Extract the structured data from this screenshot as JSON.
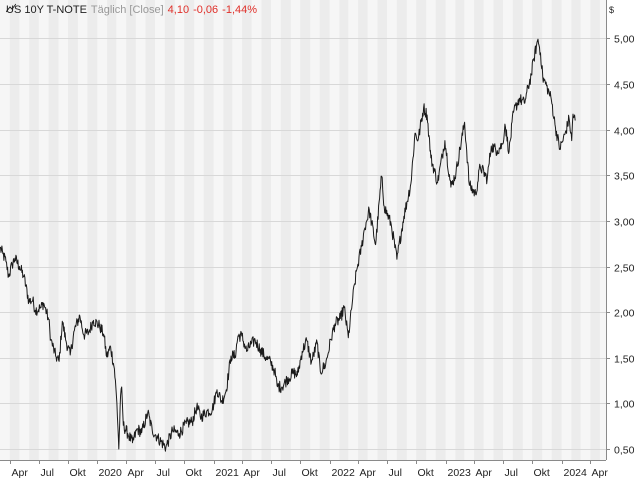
{
  "legend": {
    "name": "US 10Y T-NOTE",
    "period": "Täglich [Close]",
    "last": "4,10",
    "change": "-0,06",
    "change_pct": "-1,44%"
  },
  "colors": {
    "line": "#1a1a1a",
    "negative": "#e0302a",
    "band_light": "#f6f6f6",
    "band_dark": "#ececec",
    "grid": "#d8d8d8",
    "axis": "#8a8a8a"
  },
  "chart_data": {
    "type": "line",
    "currency_label": "$",
    "x_range": [
      "2019-03-01",
      "2024-05-20"
    ],
    "y_range": [
      0.38,
      5.42
    ],
    "y_ticks": [
      {
        "value": 0.5,
        "label": "0,50"
      },
      {
        "value": 1.0,
        "label": "1,00"
      },
      {
        "value": 1.5,
        "label": "1,50"
      },
      {
        "value": 2.0,
        "label": "2,00"
      },
      {
        "value": 2.5,
        "label": "2,50"
      },
      {
        "value": 3.0,
        "label": "3,00"
      },
      {
        "value": 3.5,
        "label": "3,50"
      },
      {
        "value": 4.0,
        "label": "4,00"
      },
      {
        "value": 4.5,
        "label": "4,50"
      },
      {
        "value": 5.0,
        "label": "5,00"
      }
    ],
    "x_ticks": [
      {
        "date": "2019-04-01",
        "label": "Apr"
      },
      {
        "date": "2019-07-01",
        "label": "Jul"
      },
      {
        "date": "2019-10-01",
        "label": "Okt"
      },
      {
        "date": "2020-01-01",
        "label": "2020"
      },
      {
        "date": "2020-04-01",
        "label": "Apr"
      },
      {
        "date": "2020-07-01",
        "label": "Jul"
      },
      {
        "date": "2020-10-01",
        "label": "Okt"
      },
      {
        "date": "2021-01-01",
        "label": "2021"
      },
      {
        "date": "2021-04-01",
        "label": "Apr"
      },
      {
        "date": "2021-07-01",
        "label": "Jul"
      },
      {
        "date": "2021-10-01",
        "label": "Okt"
      },
      {
        "date": "2022-01-01",
        "label": "2022"
      },
      {
        "date": "2022-04-01",
        "label": "Apr"
      },
      {
        "date": "2022-07-01",
        "label": "Jul"
      },
      {
        "date": "2022-10-01",
        "label": "Okt"
      },
      {
        "date": "2023-01-01",
        "label": "2023"
      },
      {
        "date": "2023-04-01",
        "label": "Apr"
      },
      {
        "date": "2023-07-01",
        "label": "Jul"
      },
      {
        "date": "2023-10-01",
        "label": "Okt"
      },
      {
        "date": "2024-01-01",
        "label": "2024"
      },
      {
        "date": "2024-04-01",
        "label": "Apr"
      }
    ],
    "series": [
      {
        "name": "US 10Y T-NOTE",
        "points": [
          [
            "2019-03-01",
            2.7
          ],
          [
            "2019-03-10",
            2.64
          ],
          [
            "2019-03-20",
            2.55
          ],
          [
            "2019-03-28",
            2.39
          ],
          [
            "2019-04-08",
            2.52
          ],
          [
            "2019-04-17",
            2.59
          ],
          [
            "2019-05-01",
            2.5
          ],
          [
            "2019-05-15",
            2.39
          ],
          [
            "2019-05-31",
            2.12
          ],
          [
            "2019-06-12",
            2.13
          ],
          [
            "2019-06-20",
            2.02
          ],
          [
            "2019-07-08",
            2.05
          ],
          [
            "2019-07-16",
            2.1
          ],
          [
            "2019-08-01",
            1.92
          ],
          [
            "2019-08-08",
            1.7
          ],
          [
            "2019-08-23",
            1.52
          ],
          [
            "2019-09-03",
            1.46
          ],
          [
            "2019-09-13",
            1.9
          ],
          [
            "2019-09-25",
            1.68
          ],
          [
            "2019-10-08",
            1.53
          ],
          [
            "2019-10-21",
            1.8
          ],
          [
            "2019-11-07",
            1.96
          ],
          [
            "2019-11-20",
            1.75
          ],
          [
            "2019-12-05",
            1.78
          ],
          [
            "2019-12-20",
            1.91
          ],
          [
            "2020-01-08",
            1.85
          ],
          [
            "2020-01-21",
            1.76
          ],
          [
            "2020-01-31",
            1.51
          ],
          [
            "2020-02-12",
            1.62
          ],
          [
            "2020-02-24",
            1.38
          ],
          [
            "2020-03-03",
            1.0
          ],
          [
            "2020-03-09",
            0.5
          ],
          [
            "2020-03-13",
            0.96
          ],
          [
            "2020-03-18",
            1.18
          ],
          [
            "2020-03-23",
            0.76
          ],
          [
            "2020-04-06",
            0.67
          ],
          [
            "2020-04-21",
            0.57
          ],
          [
            "2020-05-06",
            0.72
          ],
          [
            "2020-05-20",
            0.68
          ],
          [
            "2020-06-08",
            0.9
          ],
          [
            "2020-06-22",
            0.71
          ],
          [
            "2020-07-10",
            0.62
          ],
          [
            "2020-08-04",
            0.52
          ],
          [
            "2020-08-25",
            0.7
          ],
          [
            "2020-09-15",
            0.67
          ],
          [
            "2020-10-07",
            0.78
          ],
          [
            "2020-10-26",
            0.8
          ],
          [
            "2020-11-09",
            0.96
          ],
          [
            "2020-11-23",
            0.85
          ],
          [
            "2020-12-10",
            0.91
          ],
          [
            "2020-12-28",
            0.93
          ],
          [
            "2021-01-12",
            1.15
          ],
          [
            "2021-01-27",
            1.02
          ],
          [
            "2021-02-10",
            1.15
          ],
          [
            "2021-02-25",
            1.52
          ],
          [
            "2021-03-10",
            1.52
          ],
          [
            "2021-03-19",
            1.74
          ],
          [
            "2021-03-31",
            1.74
          ],
          [
            "2021-04-15",
            1.57
          ],
          [
            "2021-04-29",
            1.65
          ],
          [
            "2021-05-12",
            1.69
          ],
          [
            "2021-05-28",
            1.59
          ],
          [
            "2021-06-15",
            1.5
          ],
          [
            "2021-06-30",
            1.45
          ],
          [
            "2021-07-12",
            1.36
          ],
          [
            "2021-07-20",
            1.19
          ],
          [
            "2021-08-04",
            1.18
          ],
          [
            "2021-08-20",
            1.26
          ],
          [
            "2021-09-10",
            1.34
          ],
          [
            "2021-09-22",
            1.31
          ],
          [
            "2021-10-07",
            1.57
          ],
          [
            "2021-10-21",
            1.69
          ],
          [
            "2021-11-05",
            1.45
          ],
          [
            "2021-11-23",
            1.67
          ],
          [
            "2021-12-03",
            1.35
          ],
          [
            "2021-12-20",
            1.43
          ],
          [
            "2022-01-05",
            1.7
          ],
          [
            "2022-01-18",
            1.87
          ],
          [
            "2022-02-04",
            1.93
          ],
          [
            "2022-02-16",
            2.05
          ],
          [
            "2022-03-01",
            1.72
          ],
          [
            "2022-03-15",
            2.15
          ],
          [
            "2022-03-28",
            2.47
          ],
          [
            "2022-04-12",
            2.72
          ],
          [
            "2022-04-21",
            2.91
          ],
          [
            "2022-05-06",
            3.12
          ],
          [
            "2022-05-26",
            2.74
          ],
          [
            "2022-06-14",
            3.49
          ],
          [
            "2022-06-22",
            3.16
          ],
          [
            "2022-07-14",
            2.96
          ],
          [
            "2022-08-01",
            2.58
          ],
          [
            "2022-08-23",
            3.05
          ],
          [
            "2022-09-14",
            3.41
          ],
          [
            "2022-09-27",
            3.96
          ],
          [
            "2022-10-07",
            3.89
          ],
          [
            "2022-10-24",
            4.24
          ],
          [
            "2022-11-04",
            4.16
          ],
          [
            "2022-11-16",
            3.69
          ],
          [
            "2022-12-07",
            3.42
          ],
          [
            "2022-12-30",
            3.88
          ],
          [
            "2023-01-18",
            3.37
          ],
          [
            "2023-02-03",
            3.53
          ],
          [
            "2023-03-02",
            4.08
          ],
          [
            "2023-03-17",
            3.39
          ],
          [
            "2023-04-06",
            3.29
          ],
          [
            "2023-04-20",
            3.6
          ],
          [
            "2023-05-12",
            3.46
          ],
          [
            "2023-05-25",
            3.82
          ],
          [
            "2023-06-13",
            3.77
          ],
          [
            "2023-06-30",
            3.84
          ],
          [
            "2023-07-07",
            4.06
          ],
          [
            "2023-07-20",
            3.76
          ],
          [
            "2023-08-03",
            4.19
          ],
          [
            "2023-08-21",
            4.34
          ],
          [
            "2023-09-06",
            4.29
          ],
          [
            "2023-09-28",
            4.6
          ],
          [
            "2023-10-06",
            4.78
          ],
          [
            "2023-10-19",
            4.99
          ],
          [
            "2023-10-27",
            4.84
          ],
          [
            "2023-11-03",
            4.57
          ],
          [
            "2023-11-15",
            4.48
          ],
          [
            "2023-11-30",
            4.33
          ],
          [
            "2023-12-13",
            4.02
          ],
          [
            "2023-12-27",
            3.79
          ],
          [
            "2024-01-12",
            3.95
          ],
          [
            "2024-01-25",
            4.12
          ],
          [
            "2024-02-02",
            3.88
          ],
          [
            "2024-02-06",
            4.17
          ],
          [
            "2024-02-13",
            4.1
          ]
        ]
      }
    ],
    "ylabel": "",
    "xlabel": "",
    "grid": true
  }
}
